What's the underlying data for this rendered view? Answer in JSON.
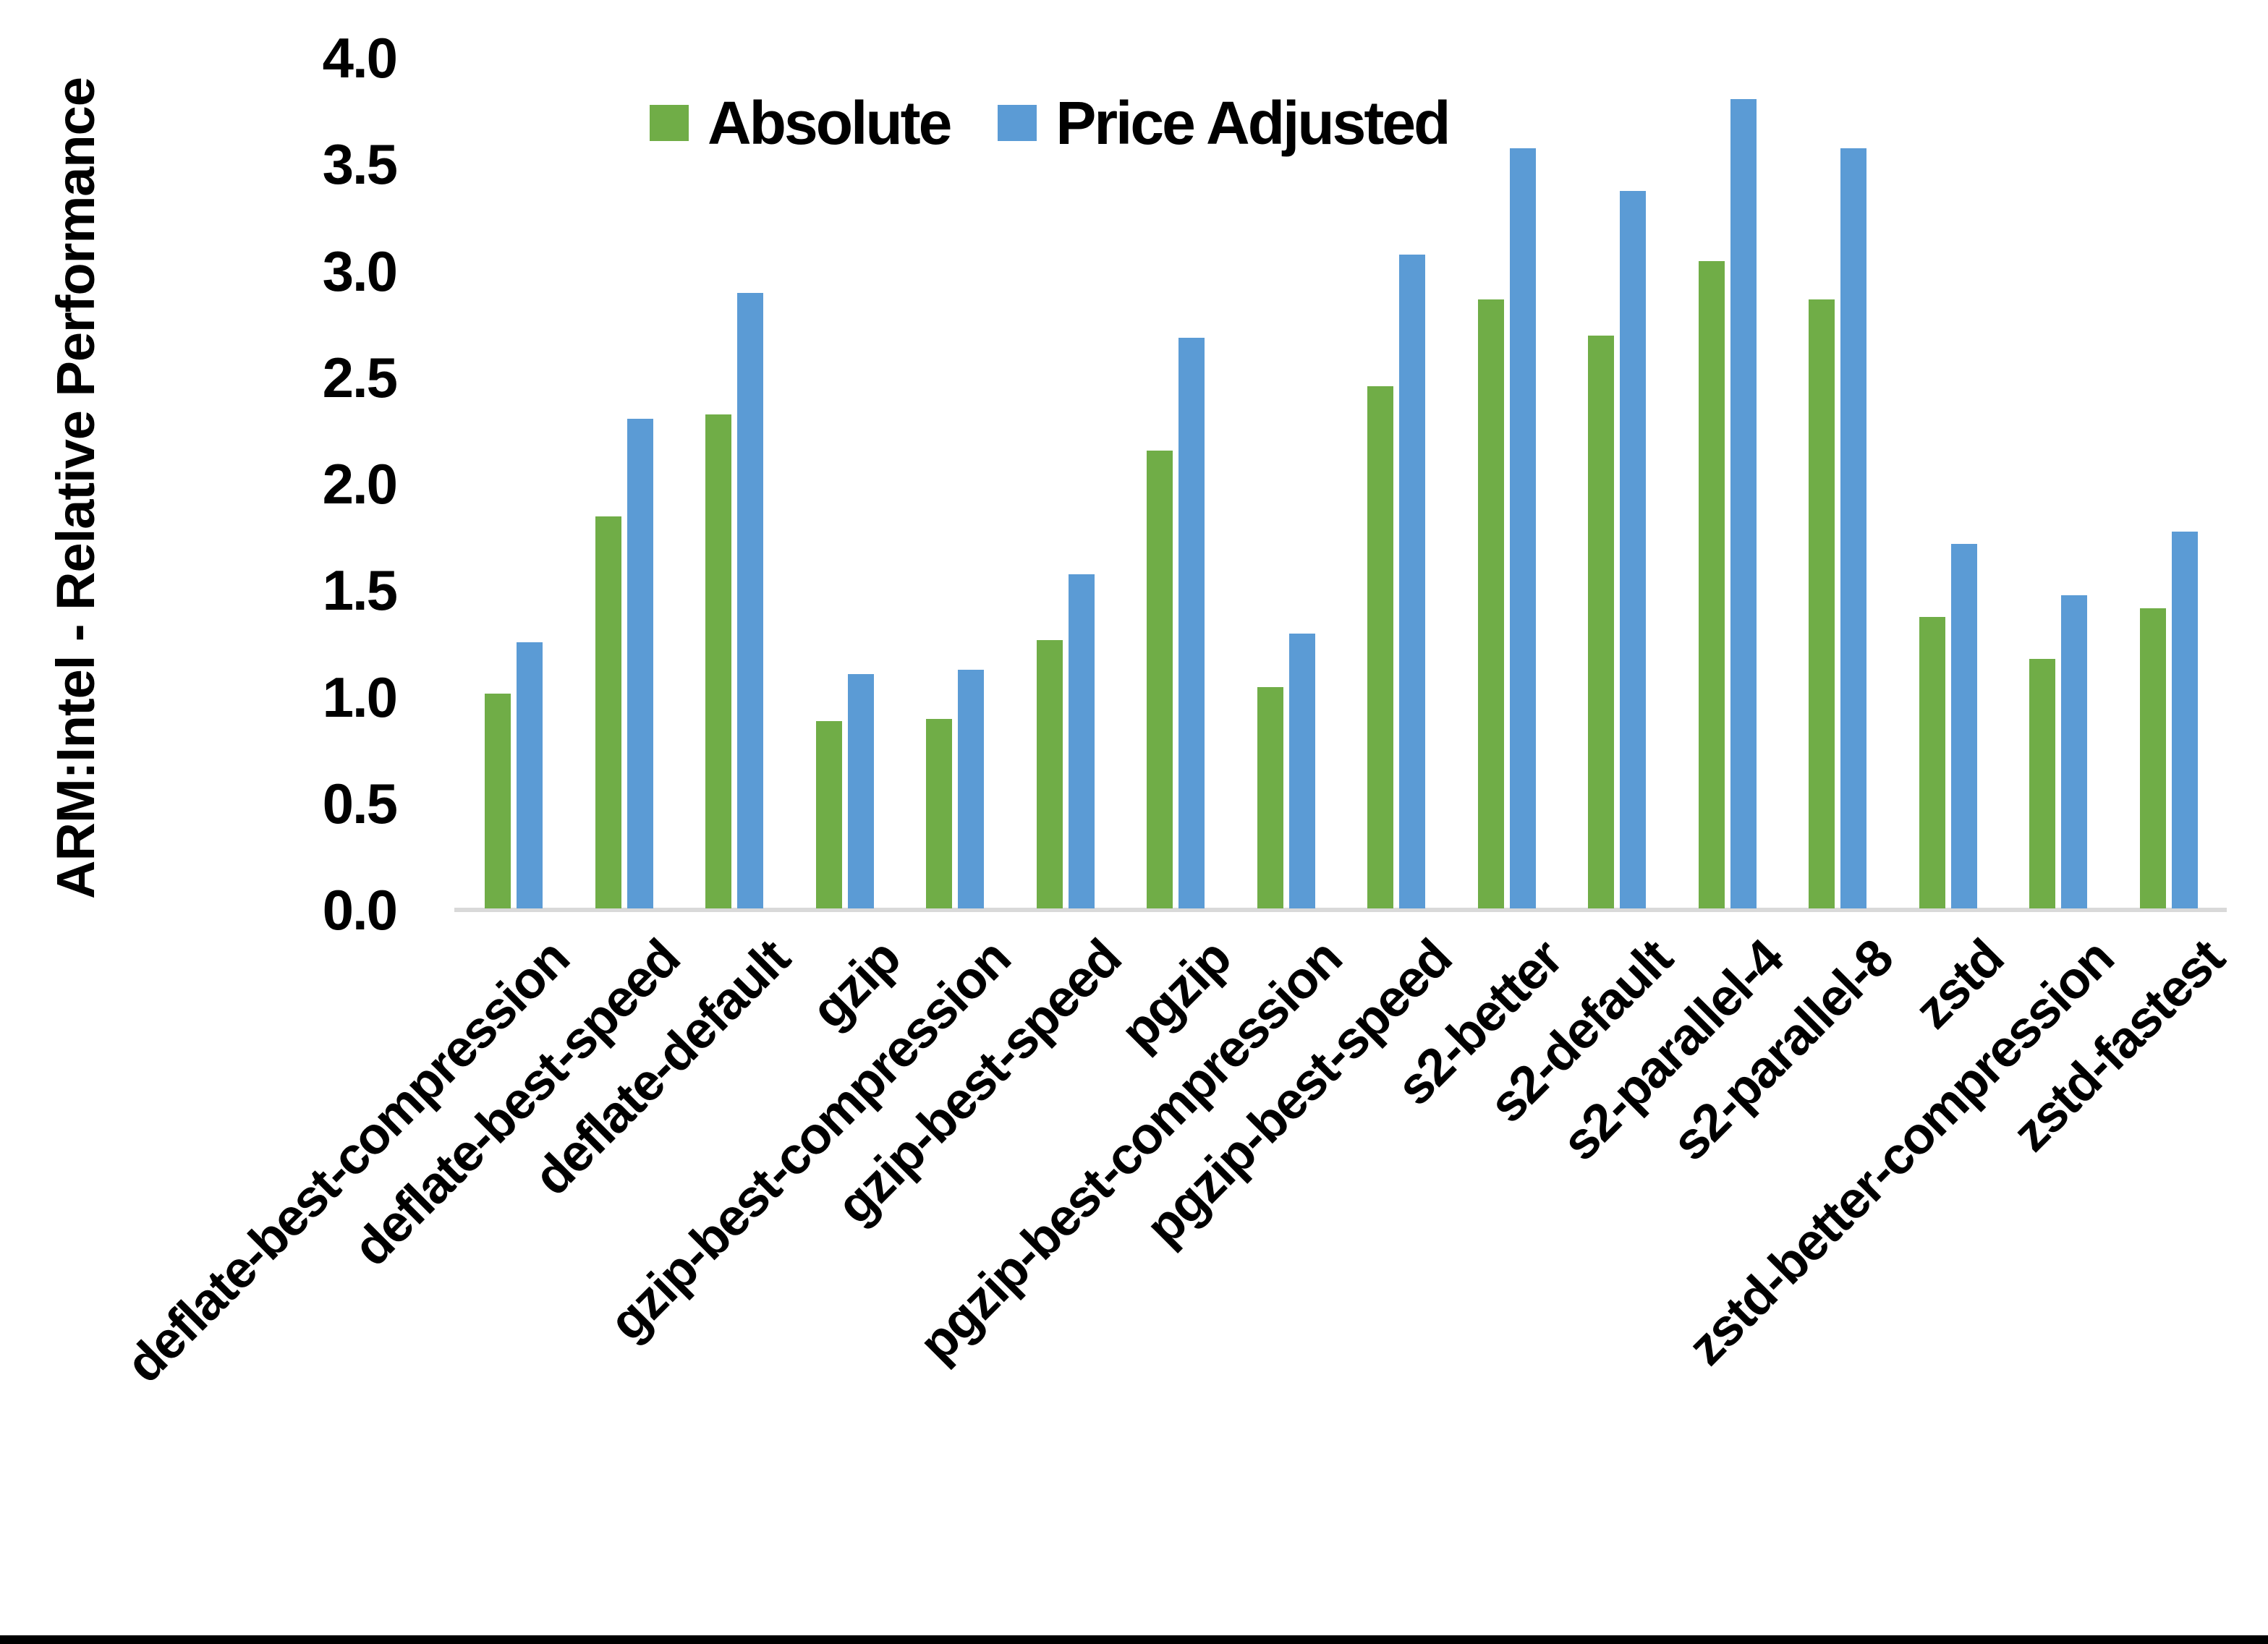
{
  "chart_data": {
    "type": "bar",
    "title": "",
    "xlabel": "",
    "ylabel": "ARM:Intel - Relative Performance",
    "ylim": [
      0.0,
      4.0
    ],
    "ytick_step": 0.5,
    "yticks": [
      "0.0",
      "0.5",
      "1.0",
      "1.5",
      "2.0",
      "2.5",
      "3.0",
      "3.5",
      "4.0"
    ],
    "grid": false,
    "legend_position": "top-center",
    "categories": [
      "deflate-best-compression",
      "deflate-best-speed",
      "deflate-default",
      "gzip",
      "gzip-best-compression",
      "gzip-best-speed",
      "pgzip",
      "pgzip-best-compression",
      "pgzip-best-speed",
      "s2-better",
      "s2-default",
      "s2-parallel-4",
      "s2-parallel-8",
      "zstd",
      "zstd-better-compression",
      "zstd-fastest"
    ],
    "series": [
      {
        "name": "Absolute",
        "color": "#70AD47",
        "values": [
          1.01,
          1.84,
          2.32,
          0.88,
          0.89,
          1.26,
          2.15,
          1.04,
          2.45,
          2.86,
          2.69,
          3.04,
          2.86,
          1.37,
          1.17,
          1.41
        ]
      },
      {
        "name": "Price Adjusted",
        "color": "#5B9BD5",
        "values": [
          1.25,
          2.3,
          2.89,
          1.1,
          1.12,
          1.57,
          2.68,
          1.29,
          3.07,
          3.57,
          3.37,
          3.8,
          3.57,
          1.71,
          1.47,
          1.77
        ]
      }
    ]
  },
  "colors": {
    "background": "#FFFFFF",
    "axis_line": "#D9D9D9",
    "text": "#000000",
    "bottom_border": "#000000"
  }
}
